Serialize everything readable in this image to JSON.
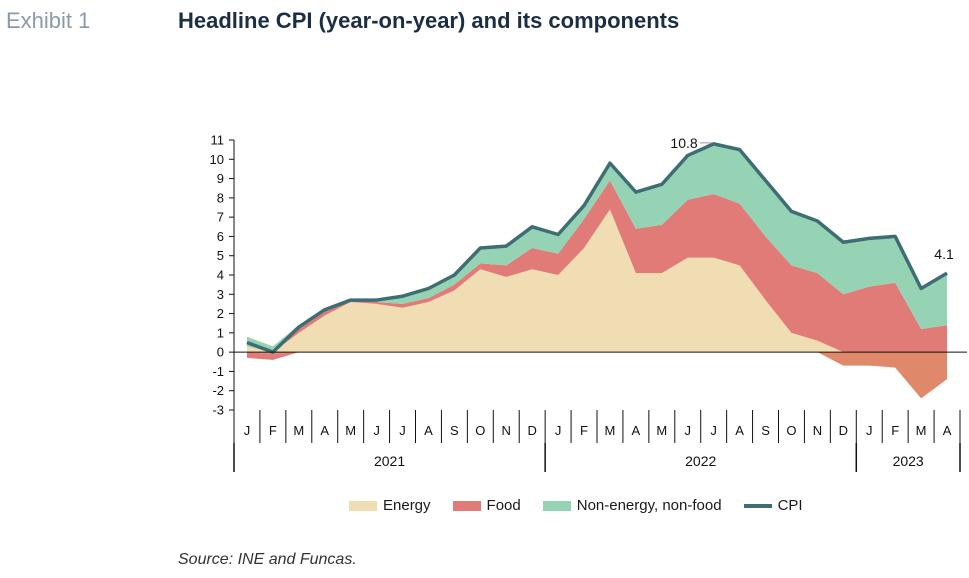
{
  "header": {
    "exhibit": "Exhibit 1",
    "title": "Headline CPI (year-on-year) and its components"
  },
  "source": "Source: INE and Funcas.",
  "chart_data": {
    "type": "area",
    "title": "Headline CPI (year-on-year) and its components",
    "categories": [
      "J",
      "F",
      "M",
      "A",
      "M",
      "J",
      "J",
      "A",
      "S",
      "O",
      "N",
      "D",
      "J",
      "F",
      "M",
      "A",
      "M",
      "J",
      "J",
      "A",
      "S",
      "O",
      "N",
      "D",
      "J",
      "F",
      "M",
      "A"
    ],
    "years": [
      {
        "label": "2021",
        "start": 0,
        "end": 11
      },
      {
        "label": "2022",
        "start": 12,
        "end": 23
      },
      {
        "label": "2023",
        "start": 24,
        "end": 27
      }
    ],
    "ylim": [
      -3,
      11
    ],
    "yticks": [
      -3,
      -2,
      -1,
      0,
      1,
      2,
      3,
      4,
      5,
      6,
      7,
      8,
      9,
      10,
      11
    ],
    "series": [
      {
        "name": "Energy",
        "color": "#f0ddb4",
        "values": [
          0.3,
          -0.1,
          1.0,
          1.9,
          2.6,
          2.5,
          2.3,
          2.6,
          3.2,
          4.3,
          3.9,
          4.3,
          4.0,
          5.4,
          7.4,
          4.1,
          4.1,
          4.9,
          4.9,
          4.5,
          2.7,
          1.0,
          0.6,
          -0.7,
          -0.7,
          -0.8,
          -2.4,
          -1.4
        ]
      },
      {
        "name": "Food",
        "color": "#e07b78",
        "values": [
          -0.3,
          -0.3,
          0.2,
          0.2,
          0.1,
          0.1,
          0.2,
          0.2,
          0.3,
          0.3,
          0.6,
          1.1,
          1.1,
          1.5,
          1.5,
          2.3,
          2.5,
          3.0,
          3.3,
          3.2,
          3.3,
          3.5,
          3.5,
          3.0,
          3.4,
          3.6,
          1.2,
          1.4
        ]
      },
      {
        "name": "Non-energy, non-food",
        "color": "#96d3b5",
        "values": [
          0.5,
          0.3,
          0.2,
          0.1,
          0.0,
          0.1,
          0.4,
          0.5,
          0.5,
          0.8,
          1.0,
          1.2,
          1.0,
          0.8,
          1.0,
          1.9,
          2.1,
          2.3,
          2.6,
          2.8,
          2.9,
          2.8,
          2.7,
          2.8,
          2.5,
          2.3,
          2.1,
          2.6
        ]
      },
      {
        "name": "CPI",
        "color": "#3e6e74",
        "values": [
          0.5,
          0.0,
          1.3,
          2.2,
          2.7,
          2.7,
          2.9,
          3.3,
          4.0,
          5.4,
          5.5,
          6.5,
          6.1,
          7.6,
          9.8,
          8.3,
          8.7,
          10.2,
          10.8,
          10.5,
          8.9,
          7.3,
          6.8,
          5.7,
          5.9,
          6.0,
          3.3,
          4.1
        ]
      }
    ],
    "annotations": [
      {
        "text": "10.8",
        "index": 18,
        "value": 10.8
      },
      {
        "text": "4.1",
        "index": 27,
        "value": 4.1
      }
    ]
  }
}
